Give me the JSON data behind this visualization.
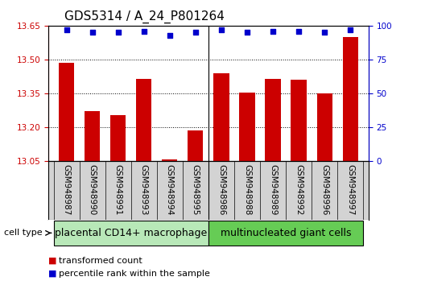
{
  "title": "GDS5314 / A_24_P801264",
  "samples": [
    "GSM948987",
    "GSM948990",
    "GSM948991",
    "GSM948993",
    "GSM948994",
    "GSM948995",
    "GSM948986",
    "GSM948988",
    "GSM948989",
    "GSM948992",
    "GSM948996",
    "GSM948997"
  ],
  "transformed_counts": [
    13.487,
    13.27,
    13.255,
    13.415,
    13.058,
    13.185,
    13.44,
    13.355,
    13.415,
    13.41,
    13.35,
    13.6
  ],
  "percentile_ranks": [
    97,
    95,
    95,
    96,
    93,
    95,
    97,
    95,
    96,
    96,
    95,
    97
  ],
  "groups": [
    {
      "label": "placental CD14+ macrophage",
      "start": 0,
      "end": 6,
      "color": "#b8e8b8"
    },
    {
      "label": "multinucleated giant cells",
      "start": 6,
      "end": 12,
      "color": "#66cc55"
    }
  ],
  "ylim_left": [
    13.05,
    13.65
  ],
  "ylim_right": [
    0,
    100
  ],
  "yticks_left": [
    13.05,
    13.2,
    13.35,
    13.5,
    13.65
  ],
  "yticks_right": [
    0,
    25,
    50,
    75,
    100
  ],
  "bar_color": "#cc0000",
  "dot_color": "#0000cc",
  "background_color": "#ffffff",
  "axis_color_left": "#cc0000",
  "axis_color_right": "#0000cc",
  "legend_items": [
    {
      "label": "transformed count",
      "color": "#cc0000"
    },
    {
      "label": "percentile rank within the sample",
      "color": "#0000cc"
    }
  ],
  "cell_type_label": "cell type",
  "tick_label_fontsize": 7.5,
  "title_fontsize": 11,
  "group_label_fontsize": 9,
  "legend_fontsize": 8,
  "label_bg_color": "#d3d3d3",
  "group_divider": 5.5
}
